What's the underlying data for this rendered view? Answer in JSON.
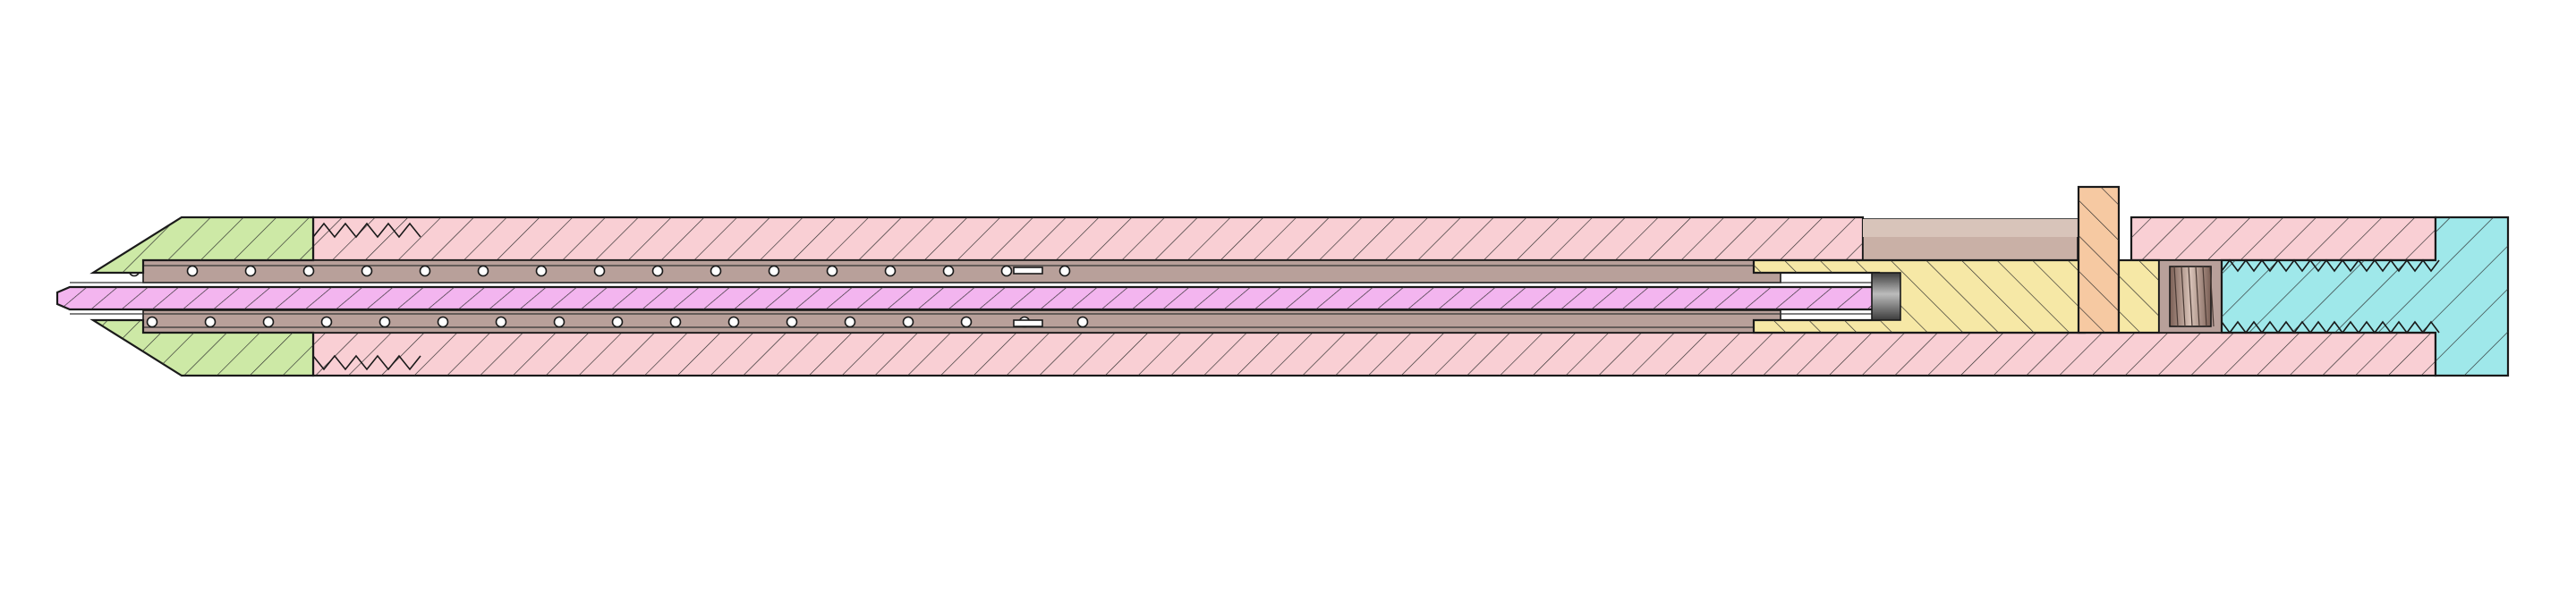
{
  "drawing": {
    "view": "longitudinal-cross-section",
    "colors": {
      "background": "#ffffff",
      "outline": "#1a1a1a",
      "hatch": "#2a2a2a",
      "outer_tube": "#f9cfd4",
      "nose_cap": "#cde9a6",
      "inner_rod": "#f3b5ef",
      "annular_gap": "#b8a09a",
      "bore_cavity": "#c9b0a6",
      "coupling_body": "#f6e8a6",
      "flange_plate": "#f6c9a2",
      "end_connector": "#9fe8ea",
      "pin_end": "#6f6f6f"
    },
    "parts": [
      {
        "id": "outer-tube",
        "hatched": true
      },
      {
        "id": "nose-cap",
        "hatched": true,
        "threaded": true
      },
      {
        "id": "inner-rod",
        "hatched": true
      },
      {
        "id": "annular-gap-with-balls",
        "ball_count_per_row": 17
      },
      {
        "id": "coupling-body",
        "hatched": true
      },
      {
        "id": "flange-plate",
        "hatched": true
      },
      {
        "id": "end-connector",
        "hatched": true,
        "threaded": true
      }
    ]
  }
}
